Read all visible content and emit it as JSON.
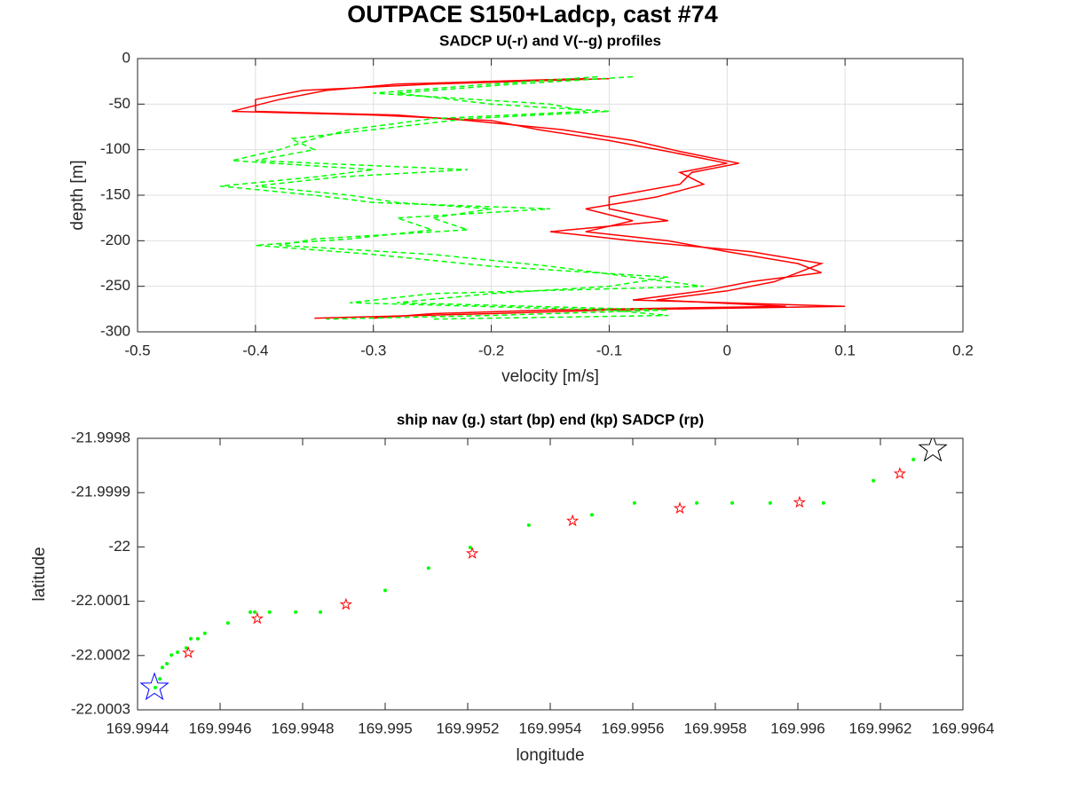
{
  "figure_title": "OUTPACE S150+Ladcp, cast #74",
  "chart_data": [
    {
      "type": "line",
      "title": "SADCP U(-r) and V(--g) profiles",
      "xlabel": "velocity [m/s]",
      "ylabel": "depth [m]",
      "xlim": [
        -0.5,
        0.2
      ],
      "xticks": [
        -0.5,
        -0.4,
        -0.3,
        -0.2,
        -0.1,
        0,
        0.1,
        0.2
      ],
      "ylim": [
        -300,
        0
      ],
      "yticks": [
        0,
        -50,
        -100,
        -150,
        -200,
        -250,
        -300
      ],
      "grid": true,
      "series": [
        {
          "color": "#ff0000",
          "style": "solid",
          "x": [
            -0.12,
            -0.28,
            -0.34,
            -0.38,
            -0.42,
            -0.3,
            -0.2,
            -0.16,
            -0.1,
            -0.05,
            0.0,
            -0.04,
            -0.02,
            -0.06,
            -0.12,
            -0.08,
            -0.12,
            -0.05,
            0.0,
            0.06,
            0.08,
            0.02,
            -0.02,
            -0.08,
            0.1,
            -0.1,
            -0.2,
            -0.35
          ],
          "values": [
            -22,
            -28,
            -35,
            -45,
            -58,
            -62,
            -68,
            -78,
            -90,
            -102,
            -115,
            -125,
            -138,
            -152,
            -165,
            -178,
            -190,
            -200,
            -212,
            -225,
            -235,
            -245,
            -255,
            -265,
            -272,
            -276,
            -280,
            -285
          ]
        },
        {
          "color": "#ff0000",
          "style": "solid",
          "x": [
            -0.1,
            -0.25,
            -0.36,
            -0.4,
            -0.4,
            -0.28,
            -0.22,
            -0.14,
            -0.08,
            -0.04,
            0.01,
            -0.03,
            -0.04,
            -0.1,
            -0.1,
            -0.05,
            -0.15,
            -0.08,
            0.02,
            0.08,
            0.06,
            0.04,
            0.0,
            -0.06,
            0.05,
            -0.15,
            -0.25,
            -0.3
          ],
          "values": [
            -22,
            -28,
            -35,
            -45,
            -58,
            -62,
            -68,
            -78,
            -90,
            -102,
            -115,
            -125,
            -138,
            -152,
            -165,
            -178,
            -190,
            -200,
            -212,
            -225,
            -235,
            -245,
            -255,
            -265,
            -272,
            -276,
            -280,
            -285
          ]
        },
        {
          "color": "#00ff00",
          "style": "dashed",
          "x": [
            -0.11,
            -0.2,
            -0.3,
            -0.15,
            -0.12,
            -0.25,
            -0.32,
            -0.35,
            -0.38,
            -0.42,
            -0.3,
            -0.35,
            -0.43,
            -0.35,
            -0.3,
            -0.15,
            -0.28,
            -0.25,
            -0.32,
            -0.4,
            -0.3,
            -0.2,
            -0.05,
            -0.1,
            -0.2,
            -0.28,
            -0.05,
            -0.2,
            -0.34
          ],
          "values": [
            -20,
            -28,
            -38,
            -50,
            -58,
            -66,
            -78,
            -88,
            -100,
            -112,
            -122,
            -130,
            -140,
            -150,
            -158,
            -165,
            -175,
            -188,
            -198,
            -205,
            -215,
            -228,
            -240,
            -250,
            -258,
            -268,
            -276,
            -282,
            -286
          ]
        },
        {
          "color": "#00ff00",
          "style": "dashed",
          "x": [
            -0.08,
            -0.18,
            -0.28,
            -0.2,
            -0.1,
            -0.22,
            -0.3,
            -0.37,
            -0.35,
            -0.4,
            -0.22,
            -0.33,
            -0.4,
            -0.32,
            -0.28,
            -0.2,
            -0.25,
            -0.22,
            -0.35,
            -0.38,
            -0.25,
            -0.15,
            -0.08,
            -0.02,
            -0.25,
            -0.32,
            -0.1,
            -0.05,
            -0.25
          ],
          "values": [
            -20,
            -28,
            -38,
            -50,
            -58,
            -66,
            -78,
            -88,
            -100,
            -112,
            -122,
            -130,
            -140,
            -150,
            -158,
            -165,
            -175,
            -188,
            -198,
            -205,
            -215,
            -228,
            -240,
            -250,
            -258,
            -268,
            -276,
            -282,
            -286
          ]
        }
      ]
    },
    {
      "type": "scatter",
      "title": "ship nav (g.) start (bp) end (kp) SADCP (rp)",
      "xlabel": "longitude",
      "ylabel": "latitude",
      "xlim": [
        169.9944,
        169.9964
      ],
      "xticks": [
        169.9944,
        169.9946,
        169.9948,
        169.995,
        169.9952,
        169.9954,
        169.9956,
        169.9958,
        169.996,
        169.9962,
        169.9964
      ],
      "ylim": [
        -22.0003,
        -21.9998
      ],
      "yticks": [
        -21.9998,
        -21.9999,
        -22,
        -22.0001,
        -22.0002,
        -22.0003
      ],
      "grid": false,
      "series": [
        {
          "color": "#00ff00",
          "marker": "dot",
          "x": [
            169.994443,
            169.994454,
            169.99446,
            169.994471,
            169.994482,
            169.994497,
            169.994518,
            169.994529,
            169.994546,
            169.994563,
            169.994619,
            169.994673,
            169.994684,
            169.99472,
            169.994783,
            169.994843,
            169.995,
            169.995105,
            169.995206,
            169.995348,
            169.995501,
            169.995604,
            169.995755,
            169.995841,
            169.995933,
            169.996062,
            169.996183,
            169.99628
          ],
          "values": [
            -22.000259,
            -22.000243,
            -22.000222,
            -22.000215,
            -22.000199,
            -22.000194,
            -22.000186,
            -22.000169,
            -22.000169,
            -22.000159,
            -22.00014,
            -22.00012,
            -22.00012,
            -22.00012,
            -22.00012,
            -22.00012,
            -22.00008,
            -22.000039,
            -22.000001,
            -21.99996,
            -21.999941,
            -21.999919,
            -21.999919,
            -21.999919,
            -21.999919,
            -21.999919,
            -21.999878,
            -21.999839
          ]
        },
        {
          "color": "#ff0000",
          "marker": "star",
          "size": 6,
          "x": [
            169.994523,
            169.99469,
            169.994905,
            169.995211,
            169.995454,
            169.995714,
            169.996004,
            169.996247
          ],
          "values": [
            -22.000195,
            -22.000132,
            -22.000106,
            -22.000012,
            -21.999952,
            -21.999929,
            -21.999918,
            -21.999865
          ]
        },
        {
          "color": "#0000ff",
          "marker": "star",
          "size": 16,
          "x": [
            169.994441
          ],
          "values": [
            -22.000259
          ]
        },
        {
          "color": "#000000",
          "marker": "star",
          "size": 16,
          "x": [
            169.996327
          ],
          "values": [
            -21.99982
          ]
        }
      ]
    }
  ]
}
